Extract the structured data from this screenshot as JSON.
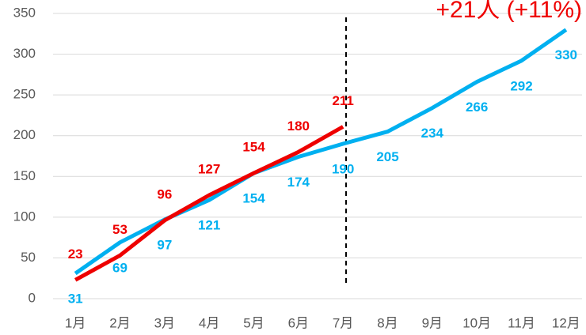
{
  "chart_data": {
    "type": "line",
    "annotation": "+21人 (+11%)",
    "categories": [
      "1月",
      "2月",
      "3月",
      "4月",
      "5月",
      "6月",
      "7月",
      "8月",
      "9月",
      "10月",
      "11月",
      "12月"
    ],
    "series": [
      {
        "name": null,
        "color": "#00b0f0",
        "values": [
          31,
          69,
          97,
          121,
          154,
          174,
          190,
          205,
          234,
          266,
          292,
          330
        ]
      },
      {
        "name": null,
        "color": "#ee0000",
        "values": [
          23,
          53,
          96,
          127,
          154,
          180,
          211,
          null,
          null,
          null,
          null,
          null
        ]
      }
    ],
    "ylim": [
      0,
      350
    ],
    "yticks": [
      0,
      50,
      100,
      150,
      200,
      250,
      300,
      350
    ],
    "grid": true
  }
}
